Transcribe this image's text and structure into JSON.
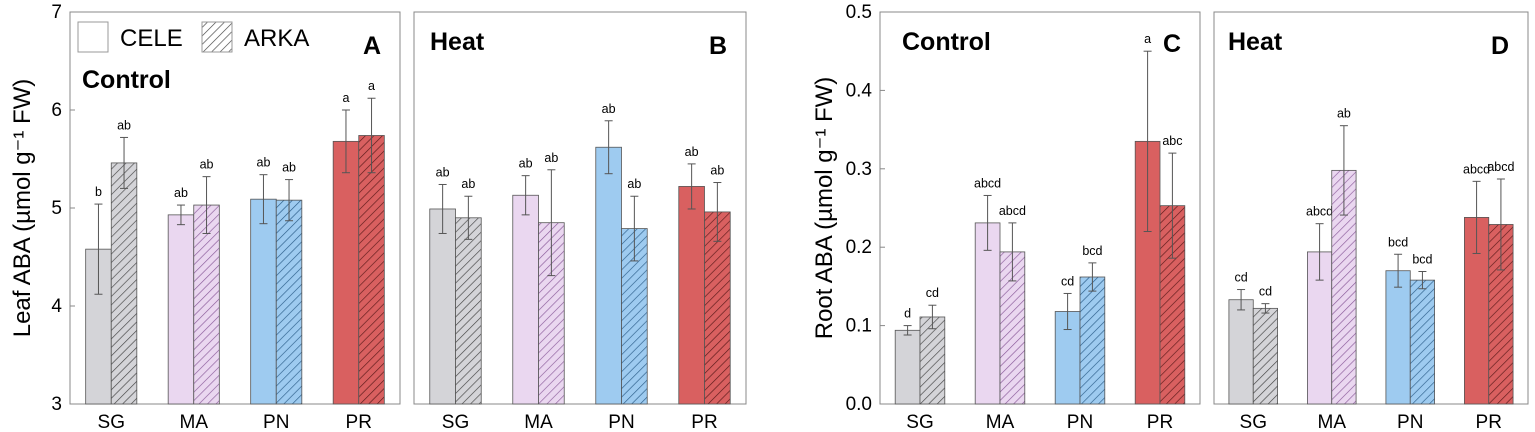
{
  "chart_data": [
    {
      "id": "A",
      "type": "bar",
      "panel_letter": "A",
      "treatment": "Control",
      "ylabel": "Leaf ABA (µmol g⁻¹ FW)",
      "ylim": [
        3,
        7
      ],
      "yticks": [
        3,
        4,
        5,
        6,
        7
      ],
      "categories": [
        "SG",
        "MA",
        "PN",
        "PR"
      ],
      "series": [
        {
          "name": "CELE",
          "values": [
            4.58,
            4.93,
            5.09,
            5.68
          ],
          "errors": [
            0.46,
            0.1,
            0.25,
            0.32
          ],
          "letters": [
            "b",
            "ab",
            "ab",
            "a"
          ]
        },
        {
          "name": "ARKA",
          "values": [
            5.46,
            5.03,
            5.08,
            5.74
          ],
          "errors": [
            0.26,
            0.29,
            0.21,
            0.38
          ],
          "letters": [
            "ab",
            "ab",
            "ab",
            "a"
          ]
        }
      ]
    },
    {
      "id": "B",
      "type": "bar",
      "panel_letter": "B",
      "treatment": "Heat",
      "ylim": [
        3,
        7
      ],
      "categories": [
        "SG",
        "MA",
        "PN",
        "PR"
      ],
      "series": [
        {
          "name": "CELE",
          "values": [
            4.99,
            5.13,
            5.62,
            5.22
          ],
          "errors": [
            0.25,
            0.2,
            0.27,
            0.23
          ],
          "letters": [
            "ab",
            "ab",
            "ab",
            "ab"
          ]
        },
        {
          "name": "ARKA",
          "values": [
            4.9,
            4.85,
            4.79,
            4.96
          ],
          "errors": [
            0.22,
            0.54,
            0.33,
            0.3
          ],
          "letters": [
            "ab",
            "ab",
            "ab",
            "ab"
          ]
        }
      ]
    },
    {
      "id": "C",
      "type": "bar",
      "panel_letter": "C",
      "treatment": "Control",
      "ylabel": "Root ABA (µmol g⁻¹ FW)",
      "ylim": [
        0,
        0.5
      ],
      "yticks": [
        0.0,
        0.1,
        0.2,
        0.3,
        0.4,
        0.5
      ],
      "ytick_labels": [
        "0.0",
        "0.1",
        "0.2",
        "0.3",
        "0.4",
        "0.5"
      ],
      "categories": [
        "SG",
        "MA",
        "PN",
        "PR"
      ],
      "series": [
        {
          "name": "CELE",
          "values": [
            0.094,
            0.231,
            0.118,
            0.335
          ],
          "errors": [
            0.006,
            0.035,
            0.023,
            0.115
          ],
          "letters": [
            "d",
            "abcd",
            "cd",
            "a"
          ]
        },
        {
          "name": "ARKA",
          "values": [
            0.111,
            0.194,
            0.162,
            0.253
          ],
          "errors": [
            0.015,
            0.037,
            0.018,
            0.067
          ],
          "letters": [
            "cd",
            "abcd",
            "bcd",
            "abc"
          ]
        }
      ]
    },
    {
      "id": "D",
      "type": "bar",
      "panel_letter": "D",
      "treatment": "Heat",
      "ylim": [
        0,
        0.5
      ],
      "categories": [
        "SG",
        "MA",
        "PN",
        "PR"
      ],
      "series": [
        {
          "name": "CELE",
          "values": [
            0.133,
            0.194,
            0.17,
            0.238
          ],
          "errors": [
            0.013,
            0.036,
            0.021,
            0.046
          ],
          "letters": [
            "cd",
            "abcd",
            "bcd",
            "abcd"
          ]
        },
        {
          "name": "ARKA",
          "values": [
            0.122,
            0.298,
            0.158,
            0.229
          ],
          "errors": [
            0.006,
            0.057,
            0.011,
            0.058
          ],
          "letters": [
            "cd",
            "ab",
            "bcd",
            "abcd"
          ]
        }
      ]
    }
  ],
  "legend": [
    {
      "name": "CELE",
      "pattern": "plain"
    },
    {
      "name": "ARKA",
      "pattern": "hatched"
    }
  ],
  "colors": {
    "SG": "#d4d4d8",
    "MA": "#ead7f0",
    "PN": "#9ecbf0",
    "PR": "#d96060",
    "frame": "#888888",
    "error": "#555555"
  }
}
